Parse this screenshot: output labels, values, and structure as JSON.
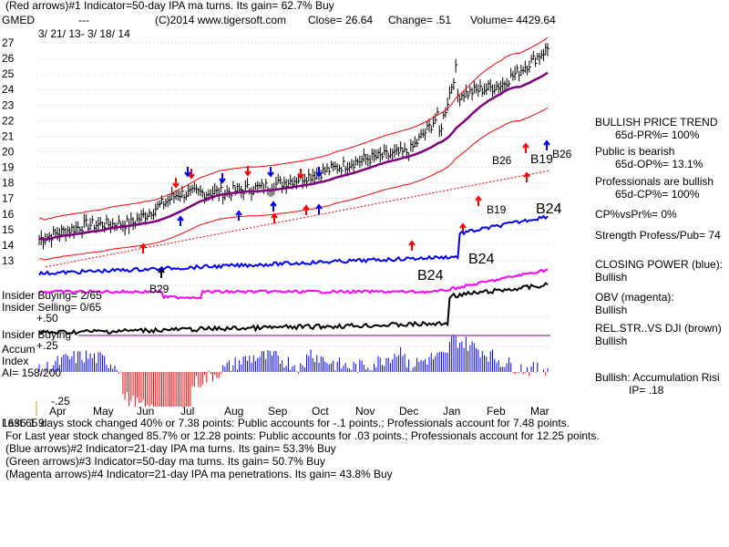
{
  "header": {
    "line1": "(Red arrows)#1 Indicator=50-day IPA ma turns. Its gain= 62.7% Buy",
    "symbol": "GMED",
    "dashes": "---",
    "copyright": "(C)2014 www.tigersoft.com",
    "close": "Close= 26.64",
    "change": "Change= .51",
    "volume": "Volume= 4429.64",
    "date_range": "3/ 21/ 13- 3/ 18/ 14"
  },
  "colors": {
    "price": "#000000",
    "bands": "#ff0000",
    "ma": "#800080",
    "closing_power": "#0000ff",
    "obv": "#ff00ff",
    "relstr": "#000000",
    "accum_pos": "#0000ff",
    "accum_neg": "#ff0000",
    "grid": "#aaaaaa"
  },
  "right_panel": [
    "BULLISH PRICE TREND",
    "65d-PR%= 100%",
    "Public is bearish",
    "65d-OP%= 13.1%",
    "Professionals are bullish",
    "65d-CP%= 100%",
    "CP%vsPr%= 0%",
    "Strength Profess/Pub= 74",
    "CLOSING POWER (blue):",
    "Bullish",
    "OBV (magenta):",
    "Bullish",
    "REL.STR..VS DJI (brown)",
    "Bullish",
    "Bullish: Accumulation Risi",
    "IP= .18"
  ],
  "chart_labels": {
    "b26_a": "B26",
    "b19_a": "B19",
    "b26_b": "B26",
    "b19_b": "B19",
    "b24_a": "B24",
    "b24_b": "B24",
    "b24_c": "B24",
    "b29": "B29",
    "insider_buying": "Insider Buying= 2/65",
    "insider_selling": "Insider Selling= 0/65",
    "plus50": "+.50",
    "insider_buying2": "Insider Buying",
    "plus25": "+.25",
    "accum": "Accum",
    "index": "Index",
    "ai": "AI= 158/200",
    "minus25": "-.25"
  },
  "footer": [
    "Last 65 days stock changed 40% or 7.38 points: Public accounts for -.1 points.; Professionals account for 7.48 points.",
    "For Last year stock changed 85.7% or 12.28 points: Public accounts for .03 points.; Professionals account for 12.25 points.",
    "(Blue arrows)#2 Indicator=21-day IPA ma turns. Its gain= 53.3% Buy",
    "(Green arrows)#3 Indicator=50-day ma turns. Its gain= 50.7% Buy",
    "(Magenta arrows)#4 Indicator=21-day IPA ma penetrations. Its gain= 43.8% Buy"
  ],
  "footer_overlap": "1636 1 9",
  "chart_data": {
    "type": "line",
    "x": [
      "Apr",
      "May",
      "Jun",
      "Jul",
      "Aug",
      "Sep",
      "Oct",
      "Nov",
      "Dec",
      "Jan",
      "Feb",
      "Mar"
    ],
    "y_ticks": [
      13,
      14,
      15,
      16,
      17,
      18,
      19,
      20,
      21,
      22,
      23,
      24,
      25,
      26,
      27
    ],
    "ylim": [
      13,
      27
    ],
    "series": [
      {
        "name": "price",
        "values": [
          14.4,
          15.3,
          15.4,
          17.3,
          17.4,
          17.8,
          18.6,
          19.5,
          20.0,
          23.6,
          24.3,
          26.64
        ]
      }
    ]
  }
}
